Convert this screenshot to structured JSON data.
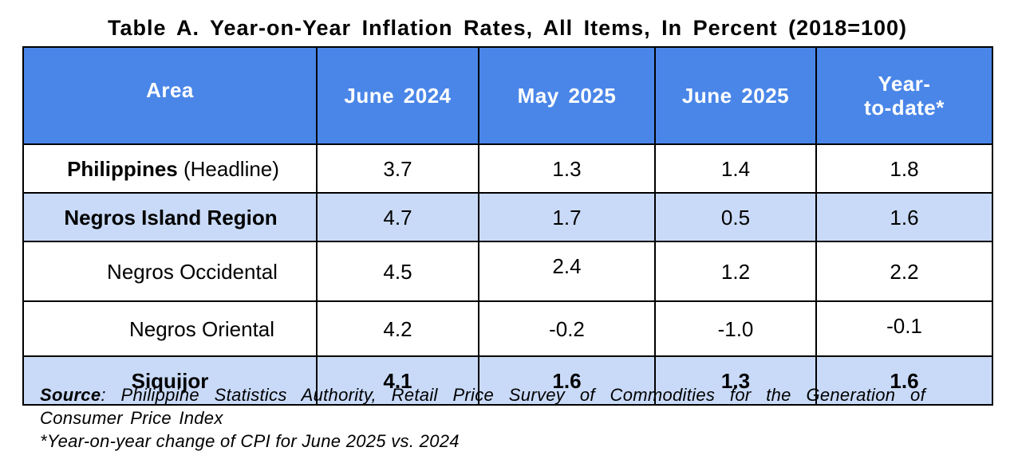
{
  "title": "Table A. Year-on-Year Inflation Rates, All Items, In Percent (2018=100)",
  "table": {
    "headers": [
      "Area",
      "June 2024",
      "May 2025",
      "June 2025",
      "Year-\nto-date*"
    ],
    "rows": [
      {
        "area_bold": "Philippines",
        "area_rest": " (Headline)",
        "values": [
          "3.7",
          "1.3",
          "1.4",
          "1.8"
        ]
      },
      {
        "area_bold": "Negros Island Region",
        "area_rest": "",
        "values": [
          "4.7",
          "1.7",
          "0.5",
          "1.6"
        ]
      },
      {
        "area_bold": "",
        "area_rest": "Negros Occidental",
        "values": [
          "4.5",
          "2.4",
          "1.2",
          "2.2"
        ]
      },
      {
        "area_bold": "",
        "area_rest": "Negros Oriental",
        "values": [
          "4.2",
          "-0.2",
          "-1.0",
          "-0.1"
        ]
      },
      {
        "area_bold": "Siquijor",
        "area_rest": "",
        "values": [
          "4.1",
          "1.6",
          "1.3",
          "1.6"
        ]
      }
    ]
  },
  "notes": {
    "source_label": "Source",
    "source_text": ": Philippine Statistics Authority, Retail Price Survey of Commodities for the Generation of Consumer Price Index",
    "footnote": "*Year-on-year change of CPI for June 2025 vs. 2024"
  },
  "colors": {
    "header_bg": "#4a86e8",
    "header_text": "#ffffff",
    "shaded_row_bg": "#c9daf8",
    "border": "#000000"
  }
}
